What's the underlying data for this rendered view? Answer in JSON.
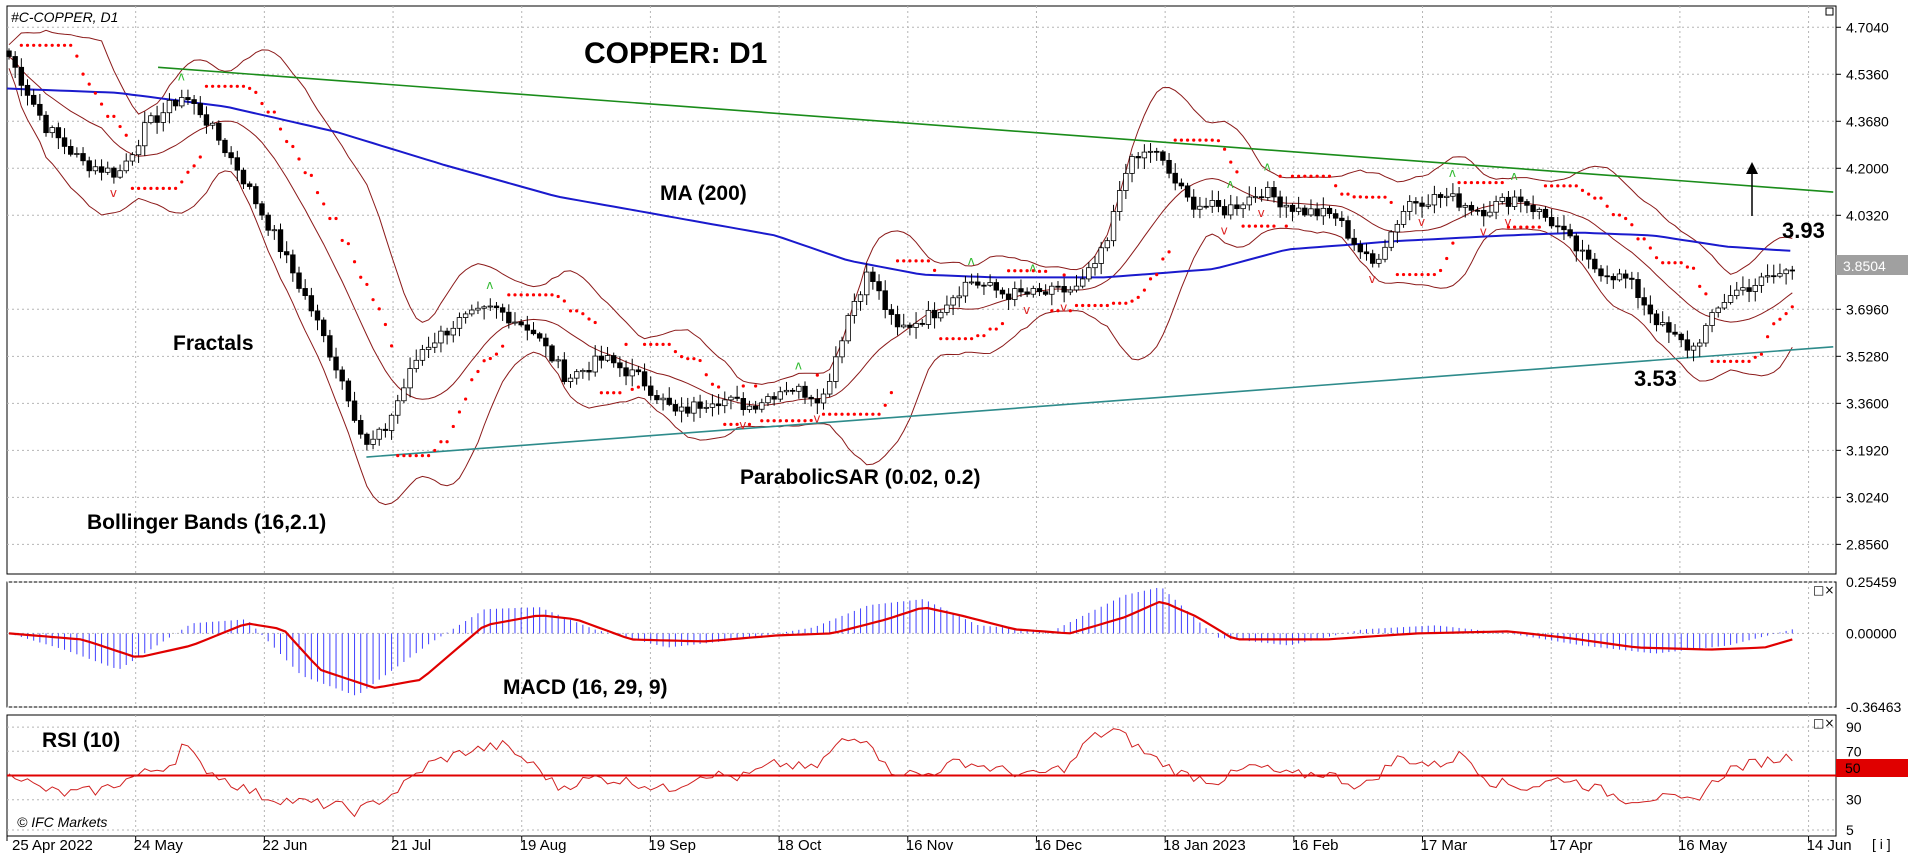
{
  "chart_data": [
    {
      "panel": "price",
      "type": "candlestick",
      "symbol_label": "#C-COPPER, D1",
      "title": "COPPER: D1",
      "ylim": [
        2.75,
        4.78
      ],
      "price_ticks": [
        "4.7040",
        "4.5360",
        "4.3680",
        "4.2000",
        "4.0320",
        "3.8504",
        "3.6960",
        "3.5280",
        "3.3600",
        "3.1920",
        "3.0240",
        "2.8560"
      ],
      "current_price_label": "3.8504",
      "indicator_labels": {
        "ma": "MA (200)",
        "fractals": "Fractals",
        "bollinger": "Bollinger Bands (16,2.1)",
        "sar": "ParabolicSAR (0.02, 0.2)"
      },
      "levels": {
        "resistance": "3.93",
        "support": "3.53",
        "resistance_value": 3.93,
        "support_value": 3.53
      },
      "trendlines": [
        {
          "name": "upper-trendline",
          "color": "#1a8c1a",
          "points": [
            [
              0.0826,
              4.561
            ],
            [
              0.9985,
              4.115
            ]
          ]
        },
        {
          "name": "lower-trendline",
          "color": "#2e8b8b",
          "points": [
            [
              0.1965,
              3.168
            ],
            [
              0.9985,
              3.562
            ]
          ]
        }
      ],
      "ma200_anchors": [
        [
          0,
          4.485
        ],
        [
          0.06,
          4.47
        ],
        [
          0.12,
          4.42
        ],
        [
          0.18,
          4.33
        ],
        [
          0.24,
          4.21
        ],
        [
          0.3,
          4.1
        ],
        [
          0.36,
          4.03
        ],
        [
          0.42,
          3.96
        ],
        [
          0.46,
          3.87
        ],
        [
          0.5,
          3.82
        ],
        [
          0.54,
          3.81
        ],
        [
          0.6,
          3.81
        ],
        [
          0.66,
          3.84
        ],
        [
          0.7,
          3.91
        ],
        [
          0.76,
          3.94
        ],
        [
          0.82,
          3.96
        ],
        [
          0.86,
          3.97
        ],
        [
          0.9,
          3.96
        ],
        [
          0.94,
          3.92
        ],
        [
          0.975,
          3.905
        ]
      ],
      "close_anchors": [
        [
          0,
          4.6
        ],
        [
          0.02,
          4.35
        ],
        [
          0.04,
          4.22
        ],
        [
          0.06,
          4.18
        ],
        [
          0.075,
          4.35
        ],
        [
          0.095,
          4.46
        ],
        [
          0.105,
          4.4
        ],
        [
          0.125,
          4.2
        ],
        [
          0.145,
          3.96
        ],
        [
          0.165,
          3.7
        ],
        [
          0.185,
          3.4
        ],
        [
          0.195,
          3.2
        ],
        [
          0.205,
          3.26
        ],
        [
          0.225,
          3.55
        ],
        [
          0.245,
          3.65
        ],
        [
          0.265,
          3.7
        ],
        [
          0.285,
          3.63
        ],
        [
          0.305,
          3.45
        ],
        [
          0.325,
          3.52
        ],
        [
          0.345,
          3.45
        ],
        [
          0.365,
          3.32
        ],
        [
          0.385,
          3.38
        ],
        [
          0.405,
          3.35
        ],
        [
          0.425,
          3.42
        ],
        [
          0.445,
          3.38
        ],
        [
          0.46,
          3.7
        ],
        [
          0.47,
          3.83
        ],
        [
          0.485,
          3.62
        ],
        [
          0.505,
          3.68
        ],
        [
          0.525,
          3.8
        ],
        [
          0.545,
          3.75
        ],
        [
          0.565,
          3.75
        ],
        [
          0.585,
          3.77
        ],
        [
          0.6,
          3.92
        ],
        [
          0.61,
          4.2
        ],
        [
          0.625,
          4.27
        ],
        [
          0.645,
          4.08
        ],
        [
          0.665,
          4.05
        ],
        [
          0.685,
          4.12
        ],
        [
          0.705,
          4.05
        ],
        [
          0.725,
          4.03
        ],
        [
          0.745,
          3.85
        ],
        [
          0.765,
          4.08
        ],
        [
          0.785,
          4.1
        ],
        [
          0.805,
          4.05
        ],
        [
          0.825,
          4.1
        ],
        [
          0.845,
          4.0
        ],
        [
          0.865,
          3.85
        ],
        [
          0.885,
          3.8
        ],
        [
          0.905,
          3.62
        ],
        [
          0.92,
          3.55
        ],
        [
          0.94,
          3.75
        ],
        [
          0.96,
          3.8
        ],
        [
          0.975,
          3.84
        ]
      ],
      "x_axis_dates": [
        "25 Apr 2022",
        "24 May",
        "22 Jun",
        "21 Jul",
        "19 Aug",
        "19 Sep",
        "18 Oct",
        "16 Nov",
        "16 Dec",
        "18 Jan 2023",
        "16 Feb",
        "17 Mar",
        "17 Apr",
        "16 May",
        "14 Jun"
      ],
      "x_axis_suffix": "[ i ]",
      "watermark": "© IFC Markets"
    },
    {
      "panel": "macd",
      "type": "bar+line",
      "label": "MACD (16, 29, 9)",
      "ylim": [
        -0.36463,
        0.25459
      ],
      "ticks": [
        "0.25459",
        "0.00000",
        "-0.36463"
      ],
      "signal_anchors": [
        [
          0,
          0.0
        ],
        [
          0.04,
          -0.03
        ],
        [
          0.07,
          -0.12
        ],
        [
          0.1,
          -0.06
        ],
        [
          0.13,
          0.05
        ],
        [
          0.15,
          0.02
        ],
        [
          0.17,
          -0.18
        ],
        [
          0.2,
          -0.27
        ],
        [
          0.225,
          -0.23
        ],
        [
          0.26,
          0.04
        ],
        [
          0.29,
          0.09
        ],
        [
          0.31,
          0.07
        ],
        [
          0.34,
          -0.03
        ],
        [
          0.38,
          -0.04
        ],
        [
          0.42,
          -0.01
        ],
        [
          0.45,
          0.0
        ],
        [
          0.48,
          0.07
        ],
        [
          0.5,
          0.13
        ],
        [
          0.52,
          0.09
        ],
        [
          0.55,
          0.02
        ],
        [
          0.58,
          0.0
        ],
        [
          0.61,
          0.08
        ],
        [
          0.63,
          0.16
        ],
        [
          0.65,
          0.08
        ],
        [
          0.67,
          -0.03
        ],
        [
          0.72,
          -0.03
        ],
        [
          0.77,
          0.0
        ],
        [
          0.82,
          0.01
        ],
        [
          0.85,
          -0.02
        ],
        [
          0.89,
          -0.07
        ],
        [
          0.93,
          -0.08
        ],
        [
          0.96,
          -0.07
        ],
        [
          0.975,
          -0.03
        ]
      ],
      "hist_anchors": [
        [
          0,
          0.0
        ],
        [
          0.03,
          -0.08
        ],
        [
          0.06,
          -0.18
        ],
        [
          0.1,
          0.05
        ],
        [
          0.13,
          0.07
        ],
        [
          0.16,
          -0.21
        ],
        [
          0.19,
          -0.31
        ],
        [
          0.23,
          -0.05
        ],
        [
          0.26,
          0.12
        ],
        [
          0.29,
          0.13
        ],
        [
          0.32,
          0.02
        ],
        [
          0.36,
          -0.07
        ],
        [
          0.4,
          -0.03
        ],
        [
          0.44,
          0.03
        ],
        [
          0.47,
          0.14
        ],
        [
          0.5,
          0.17
        ],
        [
          0.53,
          0.04
        ],
        [
          0.57,
          0.01
        ],
        [
          0.61,
          0.19
        ],
        [
          0.63,
          0.23
        ],
        [
          0.66,
          -0.02
        ],
        [
          0.7,
          -0.06
        ],
        [
          0.74,
          0.02
        ],
        [
          0.78,
          0.04
        ],
        [
          0.82,
          0.0
        ],
        [
          0.86,
          -0.06
        ],
        [
          0.9,
          -0.1
        ],
        [
          0.94,
          -0.06
        ],
        [
          0.975,
          0.02
        ]
      ]
    },
    {
      "panel": "rsi",
      "type": "line",
      "label": "RSI (10)",
      "ylim": [
        0,
        100
      ],
      "ticks": [
        "90",
        "70",
        "50",
        "30",
        "5"
      ],
      "level_line": 50,
      "level_line_label": "50",
      "anchors": [
        [
          0,
          55
        ],
        [
          0.015,
          40
        ],
        [
          0.03,
          35
        ],
        [
          0.05,
          38
        ],
        [
          0.07,
          50
        ],
        [
          0.09,
          60
        ],
        [
          0.095,
          77
        ],
        [
          0.105,
          58
        ],
        [
          0.12,
          45
        ],
        [
          0.14,
          32
        ],
        [
          0.16,
          28
        ],
        [
          0.18,
          25
        ],
        [
          0.19,
          20
        ],
        [
          0.21,
          35
        ],
        [
          0.23,
          60
        ],
        [
          0.25,
          70
        ],
        [
          0.27,
          75
        ],
        [
          0.29,
          55
        ],
        [
          0.3,
          40
        ],
        [
          0.32,
          48
        ],
        [
          0.34,
          45
        ],
        [
          0.36,
          38
        ],
        [
          0.38,
          52
        ],
        [
          0.4,
          48
        ],
        [
          0.42,
          60
        ],
        [
          0.44,
          55
        ],
        [
          0.455,
          78
        ],
        [
          0.47,
          82
        ],
        [
          0.48,
          55
        ],
        [
          0.5,
          50
        ],
        [
          0.52,
          62
        ],
        [
          0.54,
          55
        ],
        [
          0.56,
          50
        ],
        [
          0.58,
          58
        ],
        [
          0.59,
          80
        ],
        [
          0.605,
          88
        ],
        [
          0.62,
          70
        ],
        [
          0.64,
          52
        ],
        [
          0.66,
          45
        ],
        [
          0.68,
          58
        ],
        [
          0.7,
          50
        ],
        [
          0.72,
          52
        ],
        [
          0.74,
          40
        ],
        [
          0.76,
          65
        ],
        [
          0.78,
          58
        ],
        [
          0.795,
          68
        ],
        [
          0.81,
          45
        ],
        [
          0.83,
          40
        ],
        [
          0.85,
          48
        ],
        [
          0.87,
          38
        ],
        [
          0.885,
          30
        ],
        [
          0.9,
          32
        ],
        [
          0.92,
          28
        ],
        [
          0.94,
          55
        ],
        [
          0.96,
          62
        ],
        [
          0.975,
          66
        ]
      ]
    }
  ]
}
